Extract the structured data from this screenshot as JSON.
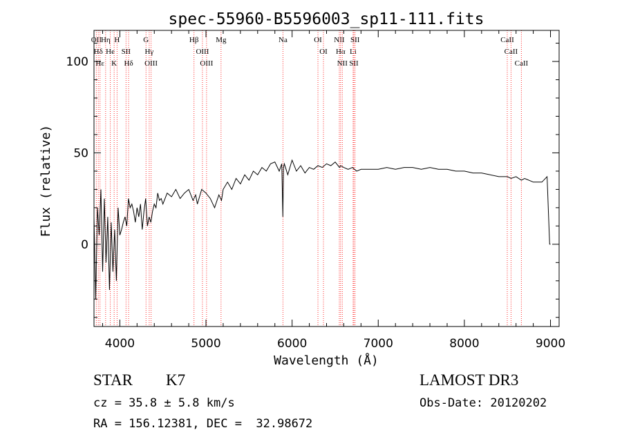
{
  "chart_data": {
    "type": "line",
    "title": "spec-55960-B5596003_sp11-111.fits",
    "xlabel": "Wavelength (Å)",
    "ylabel": "Flux (relative)",
    "xlim": [
      3700,
      9100
    ],
    "ylim": [
      -45,
      117
    ],
    "x_ticks": [
      4000,
      5000,
      6000,
      7000,
      8000,
      9000
    ],
    "y_ticks": [
      0,
      50,
      100
    ],
    "y_tick_labels": [
      "0",
      "50",
      "100"
    ],
    "grid": false,
    "series": [
      {
        "name": "flux",
        "x": [
          3700,
          3720,
          3740,
          3760,
          3780,
          3800,
          3820,
          3840,
          3860,
          3880,
          3900,
          3920,
          3940,
          3960,
          3980,
          4000,
          4020,
          4040,
          4060,
          4080,
          4100,
          4120,
          4140,
          4160,
          4180,
          4200,
          4220,
          4240,
          4260,
          4280,
          4300,
          4320,
          4340,
          4360,
          4380,
          4400,
          4420,
          4440,
          4460,
          4480,
          4500,
          4550,
          4600,
          4650,
          4700,
          4750,
          4800,
          4850,
          4880,
          4900,
          4950,
          5000,
          5050,
          5100,
          5150,
          5180,
          5200,
          5250,
          5300,
          5350,
          5400,
          5450,
          5500,
          5550,
          5600,
          5650,
          5700,
          5750,
          5800,
          5850,
          5880,
          5893,
          5900,
          5910,
          5950,
          6000,
          6050,
          6100,
          6150,
          6200,
          6250,
          6300,
          6350,
          6400,
          6450,
          6500,
          6550,
          6563,
          6600,
          6650,
          6700,
          6750,
          6800,
          6900,
          7000,
          7100,
          7200,
          7300,
          7400,
          7500,
          7600,
          7700,
          7800,
          7900,
          8000,
          8100,
          8200,
          8300,
          8400,
          8500,
          8542,
          8600,
          8662,
          8700,
          8800,
          8900,
          8960,
          8990,
          9000
        ],
        "values": [
          15,
          -30,
          20,
          5,
          30,
          -15,
          25,
          -10,
          15,
          -25,
          12,
          -15,
          8,
          -20,
          20,
          5,
          8,
          12,
          15,
          10,
          25,
          20,
          22,
          18,
          12,
          20,
          15,
          22,
          8,
          18,
          25,
          10,
          15,
          12,
          18,
          22,
          20,
          28,
          24,
          25,
          22,
          28,
          26,
          30,
          25,
          28,
          30,
          24,
          27,
          22,
          30,
          28,
          25,
          20,
          27,
          24,
          30,
          34,
          30,
          36,
          33,
          38,
          35,
          40,
          38,
          42,
          40,
          44,
          45,
          40,
          44,
          15,
          42,
          44,
          38,
          46,
          40,
          43,
          39,
          42,
          41,
          43,
          42,
          44,
          43,
          45,
          42,
          43,
          42,
          41,
          42,
          40,
          41,
          41,
          41,
          42,
          41,
          42,
          42,
          41,
          42,
          41,
          41,
          40,
          40,
          39,
          39,
          38,
          37,
          37,
          36,
          37,
          35,
          36,
          34,
          34,
          37,
          0,
          0
        ]
      }
    ],
    "lines": [
      {
        "label": "Hδ",
        "wave": 3750
      },
      {
        "label": "OII",
        "wave": 3727
      },
      {
        "label": "Hε",
        "wave": 3770
      },
      {
        "label": "Hη",
        "wave": 3835
      },
      {
        "label": "He",
        "wave": 3889
      },
      {
        "label": "K",
        "wave": 3934
      },
      {
        "label": "H",
        "wave": 3968
      },
      {
        "label": "SII",
        "wave": 4072
      },
      {
        "label": "Hδ",
        "wave": 4102
      },
      {
        "label": "G",
        "wave": 4304
      },
      {
        "label": "Hγ",
        "wave": 4341
      },
      {
        "label": "OIII",
        "wave": 4363
      },
      {
        "label": "Hβ",
        "wave": 4861
      },
      {
        "label": "OIII",
        "wave": 4959
      },
      {
        "label": "OIII",
        "wave": 5007
      },
      {
        "label": "Mg",
        "wave": 5175
      },
      {
        "label": "Na",
        "wave": 5894
      },
      {
        "label": "OI",
        "wave": 6300
      },
      {
        "label": "OI",
        "wave": 6364
      },
      {
        "label": "NII",
        "wave": 6548
      },
      {
        "label": "Hα",
        "wave": 6563
      },
      {
        "label": "NII",
        "wave": 6583
      },
      {
        "label": "Li",
        "wave": 6708
      },
      {
        "label": "SII",
        "wave": 6717
      },
      {
        "label": "SII",
        "wave": 6731
      },
      {
        "label": "CaII",
        "wave": 8498
      },
      {
        "label": "CaII",
        "wave": 8542
      },
      {
        "label": "CaII",
        "wave": 8662
      }
    ],
    "line_label_style": {
      "color": "#ff2a2a"
    }
  },
  "info": {
    "object_type": "STAR",
    "subclass": "K7",
    "survey": "LAMOST DR3",
    "redshift": "cz = 35.8 ± 5.8 km/s",
    "obs_date": "Obs-Date: 20120202",
    "coords": "RA = 156.12381, DEC =  32.98672"
  }
}
